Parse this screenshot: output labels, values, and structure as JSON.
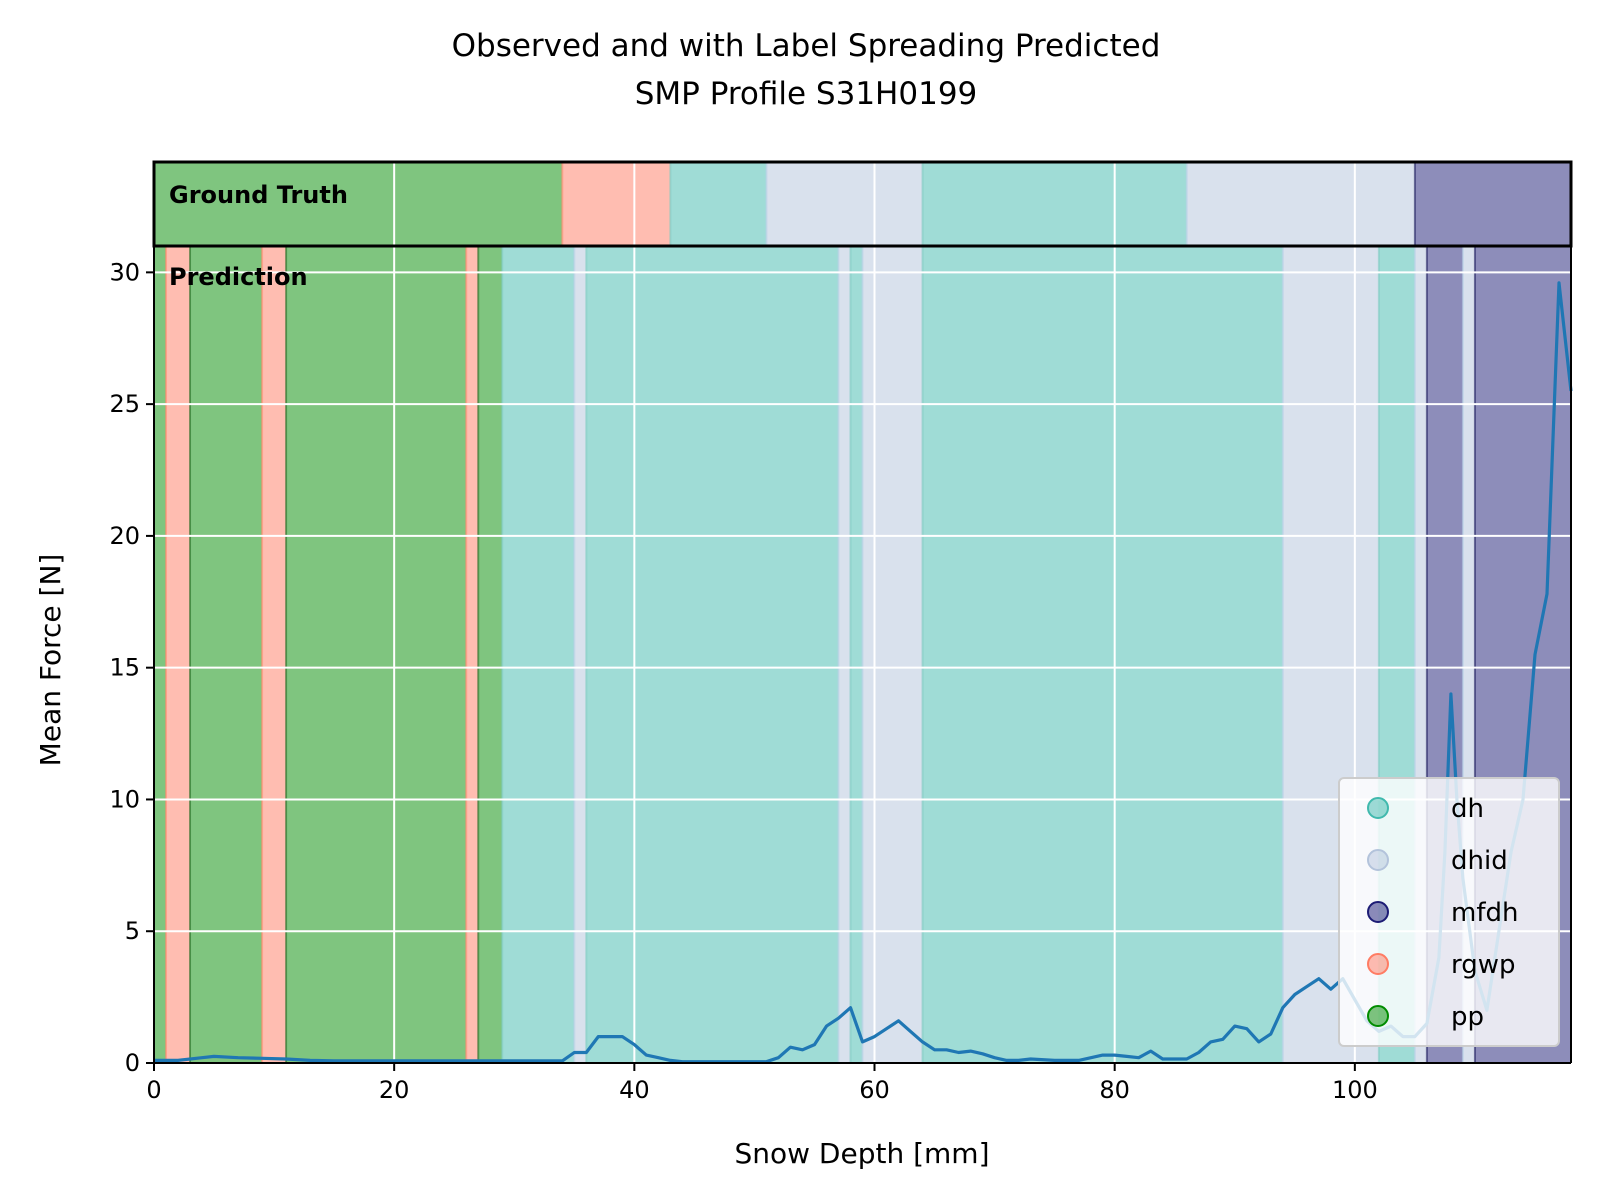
{
  "chart_data": {
    "type": "line",
    "title": "Observed and with Label Spreading Predicted",
    "subtitle": "SMP Profile S31H0199",
    "xlabel": "Snow Depth [mm]",
    "ylabel": "Mean Force [N]",
    "xlim": [
      0,
      118
    ],
    "ylim": [
      0,
      31
    ],
    "xticks": [
      0,
      20,
      40,
      60,
      80,
      100
    ],
    "yticks": [
      0,
      5,
      10,
      15,
      20,
      25,
      30
    ],
    "grid": true,
    "legend_position": "lower-right",
    "band_labels": {
      "ground_truth": "Ground Truth",
      "prediction": "Prediction"
    },
    "classes": [
      {
        "name": "dh",
        "color": "#40b9ad",
        "line_color": "#7fccc1"
      },
      {
        "name": "dhid",
        "color": "#b3c3db",
        "line_color": "#b8d0e6"
      },
      {
        "name": "mfdh",
        "color": "#1c1c75",
        "line_color": "#1c1c5e"
      },
      {
        "name": "rgwp",
        "color": "#ff7c63",
        "line_color": "#ff8a6e"
      },
      {
        "name": "pp",
        "color": "#008c00",
        "line_color": "#1f6b1f"
      }
    ],
    "ground_truth_segments": [
      {
        "from": 0,
        "to": 34,
        "label": "pp"
      },
      {
        "from": 34,
        "to": 43,
        "label": "rgwp"
      },
      {
        "from": 43,
        "to": 51,
        "label": "dh"
      },
      {
        "from": 51,
        "to": 64,
        "label": "dhid"
      },
      {
        "from": 64,
        "to": 86,
        "label": "dh"
      },
      {
        "from": 86,
        "to": 105,
        "label": "dhid"
      },
      {
        "from": 105,
        "to": 118,
        "label": "mfdh"
      }
    ],
    "prediction_segments": [
      {
        "from": 0,
        "to": 1,
        "label": "pp"
      },
      {
        "from": 1,
        "to": 3,
        "label": "rgwp"
      },
      {
        "from": 3,
        "to": 9,
        "label": "pp"
      },
      {
        "from": 9,
        "to": 11,
        "label": "rgwp"
      },
      {
        "from": 11,
        "to": 26,
        "label": "pp"
      },
      {
        "from": 26,
        "to": 27,
        "label": "rgwp"
      },
      {
        "from": 27,
        "to": 29,
        "label": "pp"
      },
      {
        "from": 29,
        "to": 35,
        "label": "dh"
      },
      {
        "from": 35,
        "to": 36,
        "label": "dhid"
      },
      {
        "from": 36,
        "to": 57,
        "label": "dh"
      },
      {
        "from": 57,
        "to": 58,
        "label": "dhid"
      },
      {
        "from": 58,
        "to": 59,
        "label": "dh"
      },
      {
        "from": 59,
        "to": 64,
        "label": "dhid"
      },
      {
        "from": 64,
        "to": 94,
        "label": "dh"
      },
      {
        "from": 94,
        "to": 102,
        "label": "dhid"
      },
      {
        "from": 102,
        "to": 105,
        "label": "dh"
      },
      {
        "from": 105,
        "to": 106,
        "label": "dhid"
      },
      {
        "from": 106,
        "to": 109,
        "label": "mfdh"
      },
      {
        "from": 109,
        "to": 110,
        "label": "dhid"
      },
      {
        "from": 110,
        "to": 118,
        "label": "mfdh"
      }
    ],
    "series": [
      {
        "color": "#1f77b4",
        "x": [
          0,
          2,
          4,
          5,
          7,
          9,
          11,
          13,
          15,
          18,
          20,
          25,
          30,
          34,
          35,
          36,
          37,
          38,
          39,
          40,
          41,
          42,
          43,
          44,
          46,
          48,
          50,
          51,
          52,
          53,
          54,
          55,
          56,
          57,
          58,
          59,
          60,
          61,
          62,
          63,
          64,
          65,
          66,
          67,
          68,
          69,
          70,
          71,
          72,
          73,
          75,
          77,
          79,
          80,
          81,
          82,
          83,
          84,
          85,
          86,
          87,
          88,
          89,
          90,
          91,
          92,
          93,
          94,
          95,
          96,
          97,
          98,
          99,
          100,
          101,
          102,
          103,
          104,
          105,
          106,
          107,
          107.5,
          108,
          108.5,
          109,
          110,
          111,
          112,
          113,
          114,
          115,
          116,
          117,
          118
        ],
        "y": [
          0.1,
          0.1,
          0.2,
          0.25,
          0.2,
          0.18,
          0.15,
          0.1,
          0.08,
          0.08,
          0.08,
          0.08,
          0.08,
          0.08,
          0.4,
          0.4,
          1.0,
          1.0,
          1.0,
          0.7,
          0.3,
          0.2,
          0.1,
          0.05,
          0.05,
          0.05,
          0.05,
          0.05,
          0.2,
          0.6,
          0.5,
          0.7,
          1.4,
          1.7,
          2.1,
          0.8,
          1.0,
          1.3,
          1.6,
          1.2,
          0.8,
          0.5,
          0.5,
          0.4,
          0.45,
          0.35,
          0.2,
          0.1,
          0.1,
          0.15,
          0.1,
          0.1,
          0.3,
          0.3,
          0.25,
          0.2,
          0.45,
          0.15,
          0.15,
          0.15,
          0.4,
          0.8,
          0.9,
          1.4,
          1.3,
          0.8,
          1.1,
          2.1,
          2.6,
          2.9,
          3.2,
          2.8,
          3.2,
          2.4,
          1.6,
          1.2,
          1.4,
          1.0,
          1.0,
          1.5,
          4.0,
          8.0,
          14.0,
          10.0,
          7.0,
          3.5,
          2.0,
          5.0,
          8.0,
          10.0,
          15.5,
          17.8,
          29.6,
          25.5
        ]
      }
    ]
  }
}
